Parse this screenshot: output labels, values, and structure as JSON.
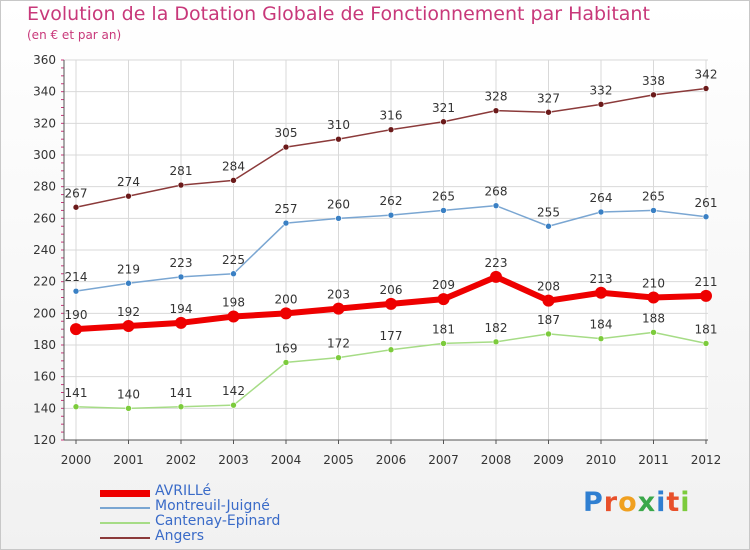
{
  "title": "Evolution de la Dotation Globale de Fonctionnement par Habitant",
  "subtitle": "(en € et par an)",
  "brand": "Proxiti",
  "colors": {
    "title": "#c8387a",
    "axis": "#555555",
    "grid": "#d9d9d9"
  },
  "chart_data": {
    "type": "line",
    "x": [
      "2000",
      "2001",
      "2002",
      "2003",
      "2004",
      "2005",
      "2006",
      "2007",
      "2008",
      "2009",
      "2010",
      "2011",
      "2012"
    ],
    "ylim": [
      120,
      360
    ],
    "yticks": [
      120,
      140,
      160,
      180,
      200,
      220,
      240,
      260,
      280,
      300,
      320,
      340,
      360
    ],
    "grid": true,
    "legend_position": "bottom-left",
    "series": [
      {
        "name": "AVRILLé",
        "values": [
          190,
          192,
          194,
          198,
          200,
          203,
          206,
          209,
          223,
          208,
          213,
          210,
          211
        ],
        "color": "#ee0000",
        "marker": "#ee0000",
        "width": 6
      },
      {
        "name": "Montreuil-Juigné",
        "values": [
          214,
          219,
          223,
          225,
          257,
          260,
          262,
          265,
          268,
          255,
          264,
          265,
          261
        ],
        "color": "#7aa6d2",
        "marker": "#3a80c4",
        "width": 1.5
      },
      {
        "name": "Cantenay-Epinard",
        "values": [
          141,
          140,
          141,
          142,
          169,
          172,
          177,
          181,
          182,
          187,
          184,
          188,
          181
        ],
        "color": "#a6dc86",
        "marker": "#7ccb3c",
        "width": 1.5
      },
      {
        "name": "Angers",
        "values": [
          267,
          274,
          281,
          284,
          305,
          310,
          316,
          321,
          328,
          327,
          332,
          338,
          342
        ],
        "color": "#8b3a3a",
        "marker": "#6b1a1a",
        "width": 1.5
      }
    ]
  }
}
